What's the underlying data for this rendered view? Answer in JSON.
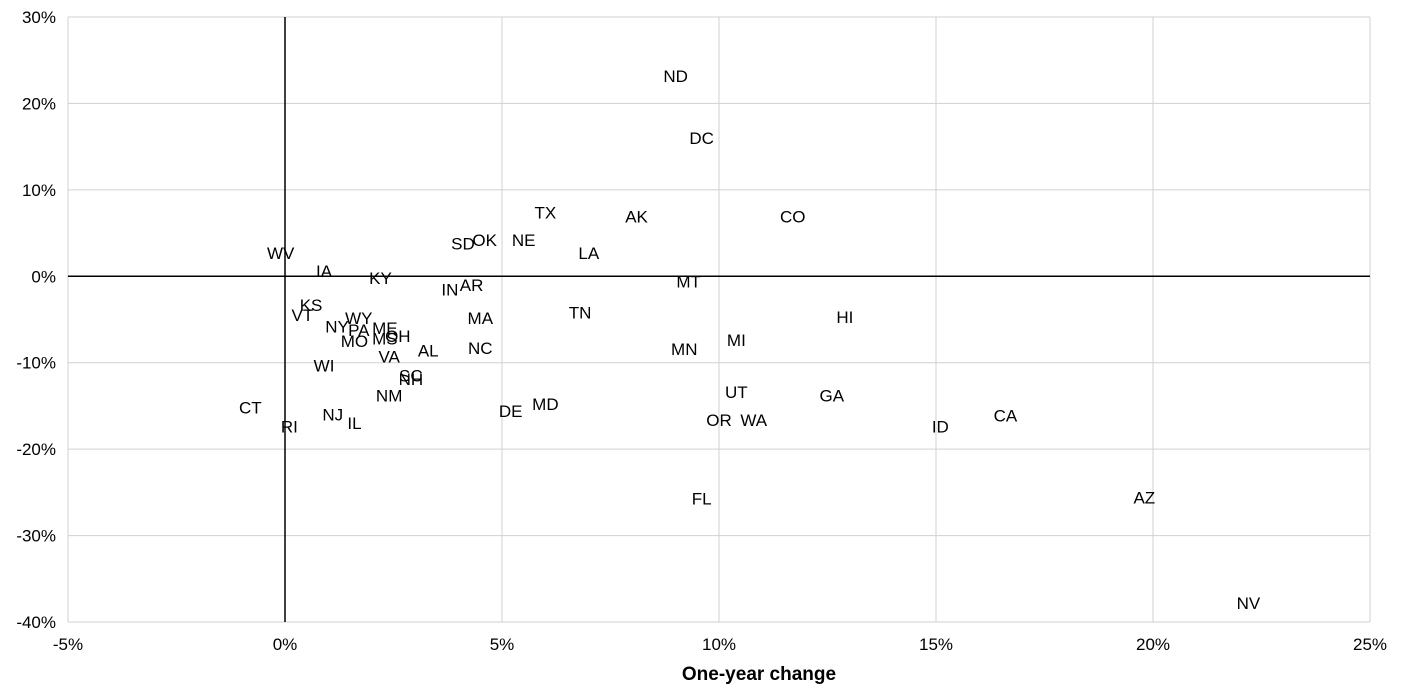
{
  "chart_data": {
    "type": "scatter",
    "title": "",
    "xlabel": "One-year change",
    "ylabel": "",
    "xlim": [
      -5,
      25
    ],
    "ylim": [
      -40,
      30
    ],
    "x_ticks": [
      -5,
      0,
      5,
      10,
      15,
      20,
      25
    ],
    "y_ticks": [
      30,
      20,
      10,
      0,
      -10,
      -20,
      -30,
      -40
    ],
    "x_tick_labels": [
      "-5%",
      "0%",
      "5%",
      "10%",
      "15%",
      "20%",
      "25%"
    ],
    "y_tick_labels": [
      "30%",
      "20%",
      "10%",
      "0%",
      "-10%",
      "-20%",
      "-30%",
      "-40%"
    ],
    "grid": true,
    "marker": "label",
    "points": [
      {
        "label": "ND",
        "x": 9.0,
        "y": 23.2
      },
      {
        "label": "DC",
        "x": 9.6,
        "y": 16.0
      },
      {
        "label": "CO",
        "x": 11.7,
        "y": 6.9
      },
      {
        "label": "TX",
        "x": 6.0,
        "y": 7.4
      },
      {
        "label": "AK",
        "x": 8.1,
        "y": 6.9
      },
      {
        "label": "SD",
        "x": 4.1,
        "y": 3.8
      },
      {
        "label": "OK",
        "x": 4.6,
        "y": 4.2
      },
      {
        "label": "NE",
        "x": 5.5,
        "y": 4.2
      },
      {
        "label": "LA",
        "x": 7.0,
        "y": 2.7
      },
      {
        "label": "WV",
        "x": -0.1,
        "y": 2.7
      },
      {
        "label": "IA",
        "x": 0.9,
        "y": 0.6
      },
      {
        "label": "KY",
        "x": 2.2,
        "y": -0.2
      },
      {
        "label": "MT",
        "x": 9.3,
        "y": -0.6
      },
      {
        "label": "AR",
        "x": 4.3,
        "y": -1.0
      },
      {
        "label": "IN",
        "x": 3.8,
        "y": -1.5
      },
      {
        "label": "KS",
        "x": 0.6,
        "y": -3.3
      },
      {
        "label": "VT",
        "x": 0.4,
        "y": -4.5
      },
      {
        "label": "TN",
        "x": 6.8,
        "y": -4.2
      },
      {
        "label": "MA",
        "x": 4.5,
        "y": -4.8
      },
      {
        "label": "HI",
        "x": 12.9,
        "y": -4.7
      },
      {
        "label": "WY",
        "x": 1.7,
        "y": -4.8
      },
      {
        "label": "NY",
        "x": 1.2,
        "y": -5.8
      },
      {
        "label": "PA",
        "x": 1.7,
        "y": -6.2
      },
      {
        "label": "ME",
        "x": 2.3,
        "y": -6.0
      },
      {
        "label": "OH",
        "x": 2.6,
        "y": -6.9
      },
      {
        "label": "MS",
        "x": 2.3,
        "y": -7.2
      },
      {
        "label": "MO",
        "x": 1.6,
        "y": -7.5
      },
      {
        "label": "MI",
        "x": 10.4,
        "y": -7.4
      },
      {
        "label": "NC",
        "x": 4.5,
        "y": -8.3
      },
      {
        "label": "AL",
        "x": 3.3,
        "y": -8.6
      },
      {
        "label": "MN",
        "x": 9.2,
        "y": -8.4
      },
      {
        "label": "VA",
        "x": 2.4,
        "y": -9.3
      },
      {
        "label": "WI",
        "x": 0.9,
        "y": -10.3
      },
      {
        "label": "SC",
        "x": 2.9,
        "y": -11.5
      },
      {
        "label": "NH",
        "x": 2.9,
        "y": -11.9
      },
      {
        "label": "NM",
        "x": 2.4,
        "y": -13.8
      },
      {
        "label": "UT",
        "x": 10.4,
        "y": -13.4
      },
      {
        "label": "GA",
        "x": 12.6,
        "y": -13.8
      },
      {
        "label": "MD",
        "x": 6.0,
        "y": -14.8
      },
      {
        "label": "CT",
        "x": -0.8,
        "y": -15.2
      },
      {
        "label": "DE",
        "x": 5.2,
        "y": -15.6
      },
      {
        "label": "NJ",
        "x": 1.1,
        "y": -16.0
      },
      {
        "label": "CA",
        "x": 16.6,
        "y": -16.1
      },
      {
        "label": "OR",
        "x": 10.0,
        "y": -16.6
      },
      {
        "label": "WA",
        "x": 10.8,
        "y": -16.6
      },
      {
        "label": "IL",
        "x": 1.6,
        "y": -17.0
      },
      {
        "label": "RI",
        "x": 0.1,
        "y": -17.4
      },
      {
        "label": "ID",
        "x": 15.1,
        "y": -17.4
      },
      {
        "label": "FL",
        "x": 9.6,
        "y": -25.7
      },
      {
        "label": "AZ",
        "x": 19.8,
        "y": -25.6
      },
      {
        "label": "NV",
        "x": 22.2,
        "y": -37.8
      }
    ]
  }
}
